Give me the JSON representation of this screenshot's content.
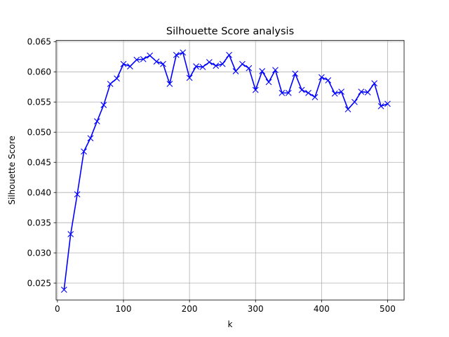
{
  "chart_data": {
    "type": "line",
    "title": "Silhouette Score analysis",
    "xlabel": "k",
    "ylabel": "Silhouette Score",
    "xlim": [
      -2,
      525
    ],
    "ylim": [
      0.0222,
      0.0652
    ],
    "xticks": [
      0,
      100,
      200,
      300,
      400,
      500
    ],
    "xtick_labels": [
      "0",
      "100",
      "200",
      "300",
      "400",
      "500"
    ],
    "yticks": [
      0.025,
      0.03,
      0.035,
      0.04,
      0.045,
      0.05,
      0.055,
      0.06,
      0.065
    ],
    "ytick_labels": [
      "0.025",
      "0.030",
      "0.035",
      "0.040",
      "0.045",
      "0.050",
      "0.055",
      "0.060",
      "0.065"
    ],
    "grid": true,
    "marker": "x",
    "line_color": "#0000ff",
    "series": [
      {
        "x": [
          10,
          20,
          30,
          40,
          50,
          60,
          70,
          80,
          90,
          100,
          110,
          120,
          130,
          140,
          150,
          160,
          170,
          180,
          190,
          200,
          210,
          220,
          230,
          240,
          250,
          260,
          270,
          280,
          290,
          300,
          310,
          320,
          330,
          340,
          350,
          360,
          370,
          380,
          390,
          400,
          410,
          420,
          430,
          440,
          450,
          460,
          470,
          480,
          490,
          500
        ],
        "values": [
          0.0239,
          0.0331,
          0.0397,
          0.0468,
          0.049,
          0.0518,
          0.0545,
          0.058,
          0.0589,
          0.0613,
          0.0609,
          0.062,
          0.0621,
          0.0627,
          0.0617,
          0.0613,
          0.058,
          0.0628,
          0.0632,
          0.059,
          0.0609,
          0.0608,
          0.0616,
          0.061,
          0.0613,
          0.0628,
          0.0601,
          0.0613,
          0.0606,
          0.057,
          0.0601,
          0.0583,
          0.0603,
          0.0565,
          0.0565,
          0.0597,
          0.057,
          0.0565,
          0.0558,
          0.0591,
          0.0586,
          0.0564,
          0.0567,
          0.0538,
          0.055,
          0.0567,
          0.0566,
          0.0581,
          0.0543,
          0.0547
        ]
      }
    ]
  }
}
